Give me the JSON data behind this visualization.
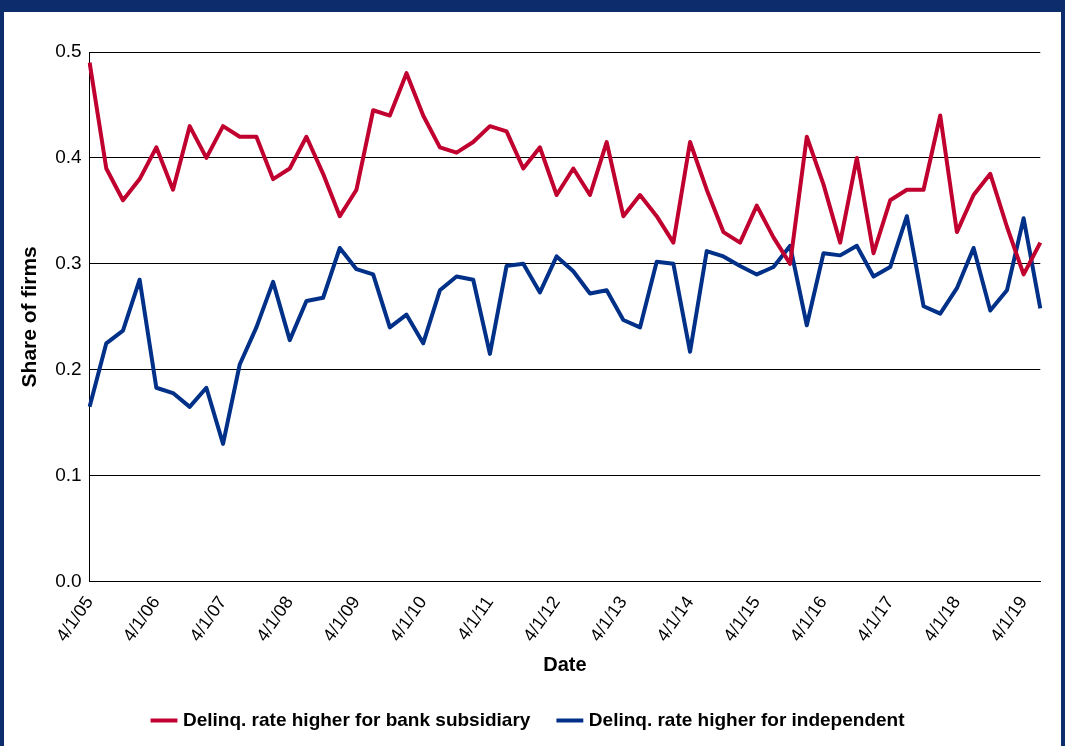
{
  "chart_data": {
    "type": "line",
    "xlabel": "Date",
    "ylabel": "Share of firms",
    "categories": [
      "4/1/05",
      null,
      null,
      null,
      "4/1/06",
      null,
      null,
      null,
      "4/1/07",
      null,
      null,
      null,
      "4/1/08",
      null,
      null,
      null,
      "4/1/09",
      null,
      null,
      null,
      "4/1/10",
      null,
      null,
      null,
      "4/1/11",
      null,
      null,
      null,
      "4/1/12",
      null,
      null,
      null,
      "4/1/13",
      null,
      null,
      null,
      "4/1/14",
      null,
      null,
      null,
      "4/1/15",
      null,
      null,
      null,
      "4/1/16",
      null,
      null,
      null,
      "4/1/17",
      null,
      null,
      null,
      "4/1/18",
      null,
      null,
      null,
      "4/1/19",
      null
    ],
    "series": [
      {
        "name": "Delinq. rate higher for bank subsidiary",
        "color": "#c0002f",
        "values": [
          0.49,
          0.39,
          0.36,
          0.38,
          0.41,
          0.37,
          0.43,
          0.4,
          0.43,
          0.42,
          0.42,
          0.38,
          0.39,
          0.42,
          0.385,
          0.345,
          0.37,
          0.445,
          0.44,
          0.48,
          0.44,
          0.41,
          0.405,
          0.415,
          0.43,
          0.425,
          0.39,
          0.41,
          0.365,
          0.39,
          0.365,
          0.415,
          0.345,
          0.365,
          0.345,
          0.32,
          0.415,
          0.37,
          0.33,
          0.32,
          0.355,
          0.325,
          0.3,
          0.42,
          0.375,
          0.32,
          0.4,
          0.31,
          0.36,
          0.37,
          0.37,
          0.44,
          0.33,
          0.365,
          0.385,
          0.335,
          0.29,
          0.32
        ]
      },
      {
        "name": "Delinq. rate higher for independent",
        "color": "#003087",
        "values": [
          0.165,
          0.225,
          0.237,
          0.285,
          0.183,
          0.178,
          0.165,
          0.183,
          0.13,
          0.205,
          0.24,
          0.283,
          0.228,
          0.265,
          0.268,
          0.315,
          0.295,
          0.29,
          0.24,
          0.252,
          0.225,
          0.275,
          0.288,
          0.285,
          0.215,
          0.298,
          0.3,
          0.273,
          0.307,
          0.293,
          0.272,
          0.275,
          0.247,
          0.24,
          0.302,
          0.3,
          0.217,
          0.312,
          0.307,
          0.298,
          0.29,
          0.297,
          0.317,
          0.242,
          0.31,
          0.308,
          0.317,
          0.288,
          0.297,
          0.345,
          0.26,
          0.253,
          0.277,
          0.315,
          0.256,
          0.275,
          0.343,
          0.258
        ]
      }
    ],
    "ylim": [
      0,
      0.5
    ],
    "yticks": [
      {
        "value": 0,
        "label": "0.0"
      },
      0.1,
      0.2,
      0.3,
      0.4,
      0.5
    ],
    "grid": "y",
    "legend": "bottom",
    "marker": "none",
    "line_style": "solid"
  }
}
